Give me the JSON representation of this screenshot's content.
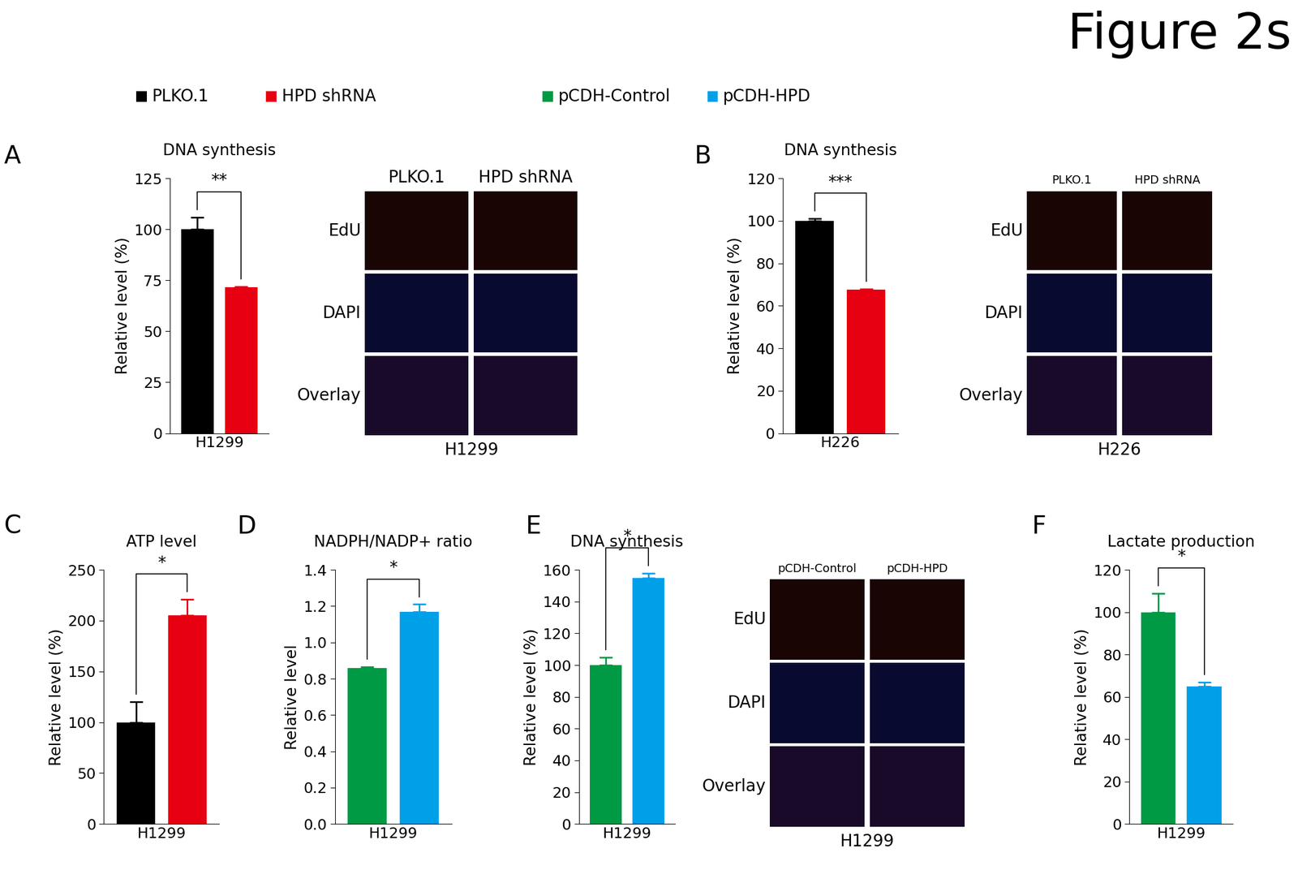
{
  "figure_title": "Figure 2s",
  "chart_data": [
    {
      "panel": "A",
      "type": "bar",
      "title": "DNA synthesis",
      "ylabel": "Relative level (%)",
      "categories": [
        "H1299"
      ],
      "series": [
        {
          "name": "PLKO.1",
          "color": "#000000",
          "values": [
            100
          ],
          "error": [
            6
          ]
        },
        {
          "name": "HPD shRNA",
          "color": "#e60012",
          "values": [
            71.5
          ],
          "error": [
            0.5
          ]
        }
      ],
      "ylim": [
        0,
        125
      ],
      "yticks": [
        0,
        25,
        50,
        75,
        100,
        125
      ],
      "annotation": "**"
    },
    {
      "panel": "B",
      "type": "bar",
      "title": "DNA synthesis",
      "ylabel": "Relative level (%)",
      "categories": [
        "H226"
      ],
      "series": [
        {
          "name": "PLKO.1",
          "color": "#000000",
          "values": [
            100
          ],
          "error": [
            1
          ]
        },
        {
          "name": "HPD shRNA",
          "color": "#e60012",
          "values": [
            67.5
          ],
          "error": [
            0.5
          ]
        }
      ],
      "ylim": [
        0,
        120
      ],
      "yticks": [
        0,
        20,
        40,
        60,
        80,
        100,
        120
      ],
      "annotation": "***"
    },
    {
      "panel": "C",
      "type": "bar",
      "title": "ATP level",
      "ylabel": "Relative level (%)",
      "categories": [
        "H1299"
      ],
      "series": [
        {
          "name": "PLKO.1",
          "color": "#000000",
          "values": [
            100
          ],
          "error": [
            20
          ]
        },
        {
          "name": "HPD shRNA",
          "color": "#e60012",
          "values": [
            205
          ],
          "error": [
            16
          ]
        }
      ],
      "ylim": [
        0,
        250
      ],
      "yticks": [
        0,
        50,
        100,
        150,
        200,
        250
      ],
      "annotation": "*"
    },
    {
      "panel": "D",
      "type": "bar",
      "title": "NADPH/NADP+ ratio",
      "ylabel": "Relative level",
      "categories": [
        "H1299"
      ],
      "series": [
        {
          "name": "pCDH-Control",
          "color": "#009a44",
          "values": [
            0.86
          ],
          "error": [
            0.005
          ]
        },
        {
          "name": "pCDH-HPD",
          "color": "#00a0e9",
          "values": [
            1.17
          ],
          "error": [
            0.04
          ]
        }
      ],
      "ylim": [
        0,
        1.4
      ],
      "yticks": [
        {
          "value": 0,
          "label": "0.0"
        },
        0.2,
        0.4,
        0.6,
        0.8,
        {
          "value": 1,
          "label": "1.0"
        },
        1.2,
        1.4
      ],
      "annotation": "*"
    },
    {
      "panel": "E",
      "type": "bar",
      "title": "DNA synthesis",
      "ylabel": "Relative level (%)",
      "categories": [
        "H1299"
      ],
      "series": [
        {
          "name": "pCDH-Control",
          "color": "#009a44",
          "values": [
            100
          ],
          "error": [
            5
          ]
        },
        {
          "name": "pCDH-HPD",
          "color": "#00a0e9",
          "values": [
            155
          ],
          "error": [
            3
          ]
        }
      ],
      "ylim": [
        0,
        160
      ],
      "yticks": [
        0,
        20,
        40,
        60,
        80,
        100,
        120,
        140,
        160
      ],
      "annotation": "*"
    },
    {
      "panel": "F",
      "type": "bar",
      "title": "Lactate production",
      "ylabel": "Relative level (%)",
      "categories": [
        "H1299"
      ],
      "series": [
        {
          "name": "pCDH-Control",
          "color": "#009a44",
          "values": [
            100
          ],
          "error": [
            9
          ]
        },
        {
          "name": "pCDH-HPD",
          "color": "#00a0e9",
          "values": [
            65
          ],
          "error": [
            2
          ]
        }
      ],
      "ylim": [
        0,
        120
      ],
      "yticks": [
        0,
        20,
        40,
        60,
        80,
        100,
        120
      ],
      "annotation": "*"
    }
  ],
  "image_panels": [
    {
      "panel": "A",
      "columns": [
        "PLKO.1",
        "HPD shRNA"
      ],
      "rows": [
        "EdU",
        "DAPI",
        "Overlay"
      ],
      "caption": "H1299"
    },
    {
      "panel": "B",
      "columns": [
        "PLKO.1",
        "HPD shRNA"
      ],
      "rows": [
        "EdU",
        "DAPI",
        "Overlay"
      ],
      "caption": "H226"
    },
    {
      "panel": "E",
      "columns": [
        "pCDH-Control",
        "pCDH-HPD"
      ],
      "rows": [
        "EdU",
        "DAPI",
        "Overlay"
      ],
      "caption": "H1299"
    }
  ]
}
